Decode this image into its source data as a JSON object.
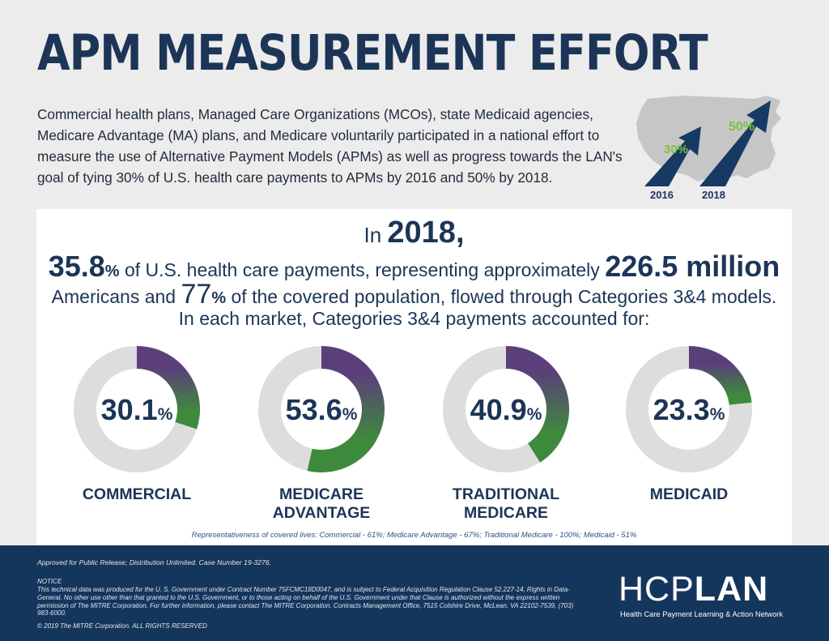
{
  "title": "APM MEASUREMENT EFFORT",
  "intro": "Commercial health plans, Managed Care Organizations (MCOs), state Medicaid agencies, Medicare Advantage (MA) plans, and Medicare voluntarily participated in a national effort to measure the use of Alternative Payment Models (APMs) as well as progress towards the LAN's goal of tying 30% of U.S. health care payments to APMs by 2016 and 50% by 2018.",
  "goal_graphic": {
    "arrows": [
      {
        "label": "30%",
        "year": "2016"
      },
      {
        "label": "50%",
        "year": "2018"
      }
    ],
    "colors": {
      "arrow": "#163a63",
      "label": "#7cc243",
      "map": "#c4c4c4"
    }
  },
  "headline": {
    "line1_prefix": "In",
    "year": "2018,",
    "pct_value": "35.8",
    "pct_sign": "%",
    "line2_mid": "of U.S. health care payments, representing approximately",
    "people": "226.5 million",
    "line3_start": "Americans and",
    "covered_value": "77",
    "covered_sign": "%",
    "line3_end": "of the covered population, flowed through Categories 3&4 models.",
    "line4": "In each market, Categories 3&4 payments accounted for:"
  },
  "chart_data": {
    "type": "pie",
    "subtype": "donut",
    "series": [
      {
        "name": "COMMERCIAL",
        "label_lines": [
          "COMMERCIAL"
        ],
        "value": 30.1,
        "display": "30.1",
        "unit": "%"
      },
      {
        "name": "MEDICARE ADVANTAGE",
        "label_lines": [
          "MEDICARE",
          "ADVANTAGE"
        ],
        "value": 53.6,
        "display": "53.6",
        "unit": "%"
      },
      {
        "name": "TRADITIONAL MEDICARE",
        "label_lines": [
          "TRADITIONAL",
          "MEDICARE"
        ],
        "value": 40.9,
        "display": "40.9",
        "unit": "%"
      },
      {
        "name": "MEDICAID",
        "label_lines": [
          "MEDICAID"
        ],
        "value": 23.3,
        "display": "23.3",
        "unit": "%"
      }
    ],
    "max": 100,
    "colors": {
      "track": "#dddddd",
      "start": "#5b3f7a",
      "end": "#3e8a3d",
      "text": "#1c3557"
    }
  },
  "representativeness": "Representativeness of covered lives: Commercial - 61%; Medicare Advantage - 67%; Traditional Medicare - 100%; Medicaid - 51%",
  "footer": {
    "approved": "Approved for Public Release; Distribution Unlimited. Case Number 19-3276.",
    "notice_title": "NOTICE",
    "notice_text": "This technical data was produced for the U. S. Government under Contract Number 75FCMC18D0047, and is subject to Federal Acquisition Regulation Clause 52.227-14, Rights in Data-General. No other use other than that granted to the U.S. Government, or to those acting on behalf of the U.S. Government under that Clause is authorized without the express written permission of The MITRE Corporation. For further information, please contact The MITRE Corporation, Contracts Management Office, 7515 Colshire Drive, McLean, VA 22102-7539, (703) 983-6000.",
    "copyright": "© 2019 The MITRE Corporation.   ALL RIGHTS RESERVED",
    "logo_thin": "HCP",
    "logo_bold": "LAN",
    "logo_sub": "Health Care Payment Learning & Action Network"
  }
}
